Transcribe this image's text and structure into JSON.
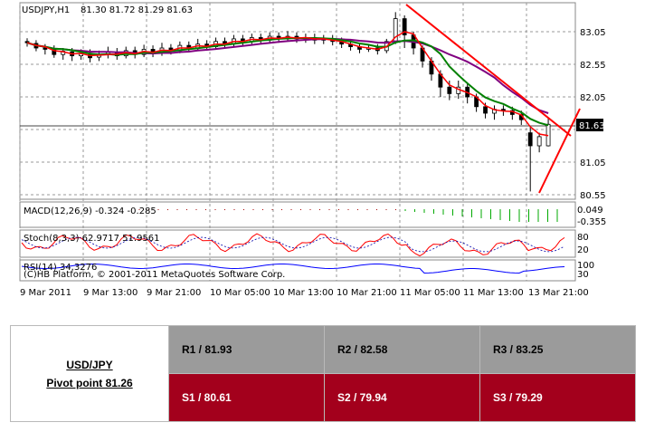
{
  "chart": {
    "symbol": "USDJPY,H1",
    "ohlc": "81.30 81.72 81.29 81.63",
    "current_price": "81.63",
    "price_ticks": [
      "83.05",
      "82.55",
      "82.05",
      "81.05",
      "80.55"
    ],
    "time_ticks": [
      "9 Mar 2011",
      "9 Mar 13:00",
      "9 Mar 21:00",
      "10 Mar 05:00",
      "10 Mar 13:00",
      "10 Mar 21:00",
      "11 Mar 05:00",
      "11 Mar 13:00",
      "13 Mar 21:00"
    ],
    "macd": {
      "label": "MACD(12,26,9) -0.324 -0.285",
      "ticks": [
        "0.049",
        "-0.355"
      ]
    },
    "stoch": {
      "label": "Stoch(8,3,3) 62.9717 51.9561",
      "ticks": [
        "80",
        "20"
      ]
    },
    "rsi": {
      "label": "RSI(14) 34.3276",
      "ticks": [
        "100",
        "30"
      ]
    },
    "copyright": "(C)HB Platform, © 2001-2011 MetaQuotes Software Corp.",
    "colors": {
      "up_candle": "#ffffff",
      "down_candle": "#000000",
      "ma_green": "#008000",
      "ma_purple": "#800080",
      "ma_red": "#ff0000",
      "trendline": "#ff0000",
      "price_box": "#000000",
      "macd_bars": "#00aa00",
      "stoch_main": "#ff0000",
      "rsi_line": "#0000ff"
    }
  },
  "pivot": {
    "pair": "USD/JPY",
    "pivot_label": "Pivot point 81.26",
    "resistance": [
      "R1 / 81.93",
      "R2 / 82.58",
      "R3 / 83.25"
    ],
    "support": [
      "S1 / 80.61",
      "S2 / 79.94",
      "S3 / 79.29"
    ],
    "colors": {
      "resistance_bg": "#9b9b9b",
      "support_bg": "#a3001c"
    }
  }
}
